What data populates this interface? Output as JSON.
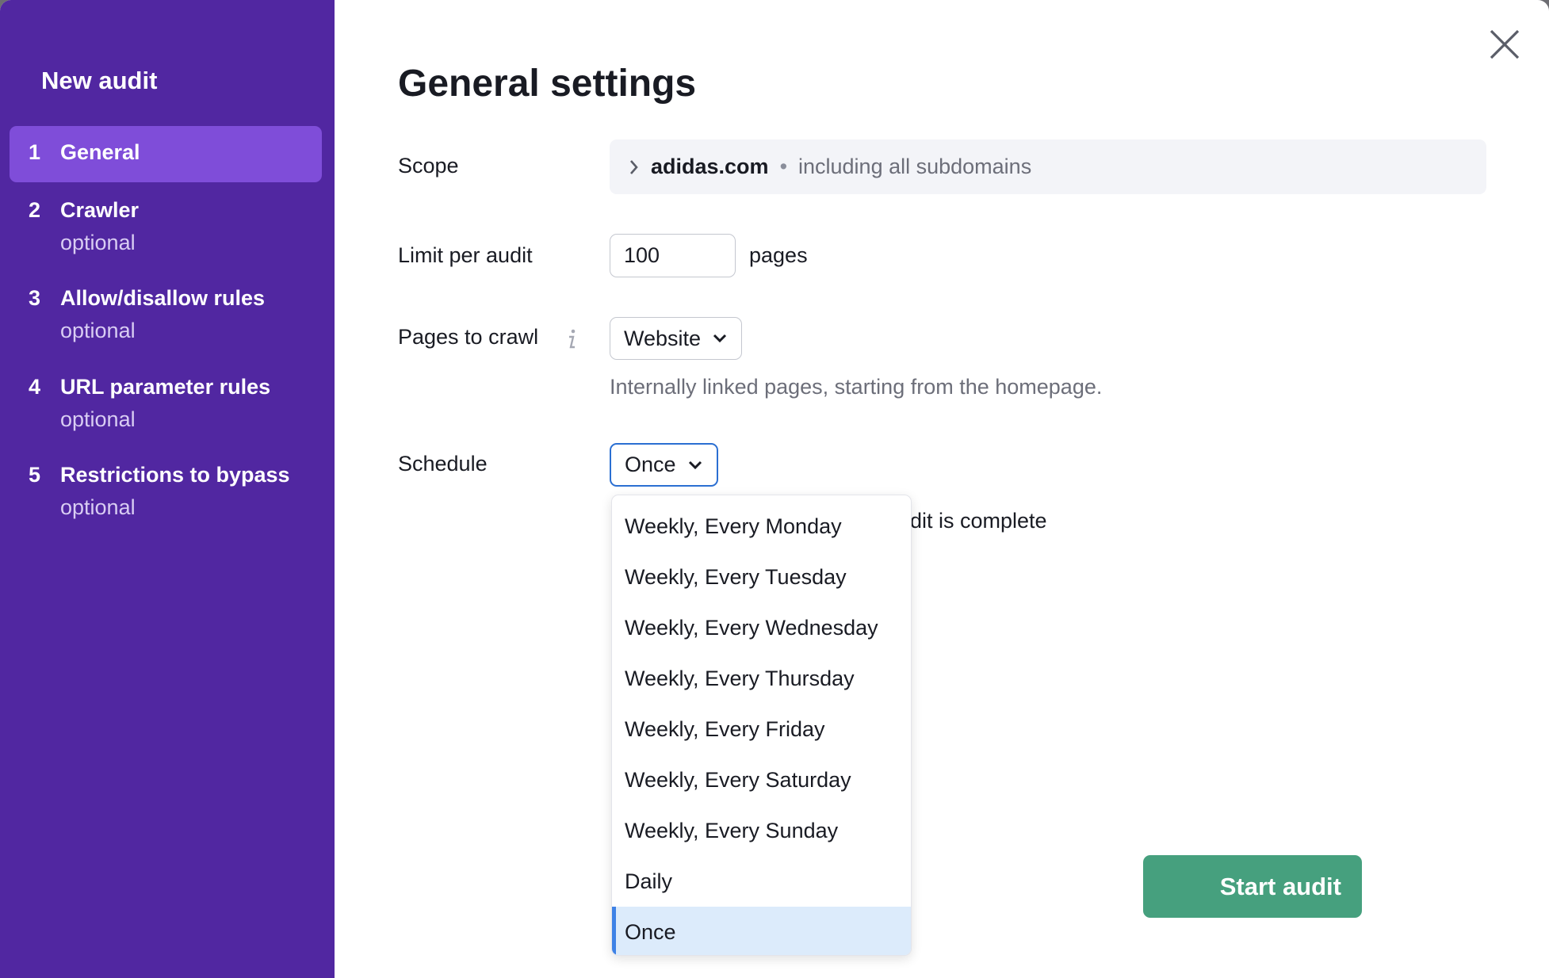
{
  "sidebar": {
    "title": "New audit",
    "steps": [
      {
        "num": "1",
        "label": "General",
        "active": true
      },
      {
        "num": "2",
        "label": "Crawler",
        "sub": "optional"
      },
      {
        "num": "3",
        "label": "Allow/disallow rules",
        "sub": "optional"
      },
      {
        "num": "4",
        "label": "URL parameter rules",
        "sub": "optional"
      },
      {
        "num": "5",
        "label": "Restrictions to bypass",
        "sub": "optional"
      }
    ]
  },
  "main": {
    "title": "General settings",
    "scope": {
      "label": "Scope",
      "domain": "adidas.com",
      "separator": "•",
      "detail": "including all subdomains"
    },
    "limit": {
      "label": "Limit per audit",
      "value": "100",
      "unit": "pages"
    },
    "pages_to_crawl": {
      "label": "Pages to crawl",
      "value": "Website",
      "help": "Internally linked pages, starting from the homepage."
    },
    "schedule": {
      "label": "Schedule",
      "value": "Once",
      "options": [
        "Weekly, Every Monday",
        "Weekly, Every Tuesday",
        "Weekly, Every Wednesday",
        "Weekly, Every Thursday",
        "Weekly, Every Friday",
        "Weekly, Every Saturday",
        "Weekly, Every Sunday",
        "Daily",
        "Once"
      ],
      "selected": "Once"
    },
    "email_fragment": "dit is complete",
    "start_button": "Start audit"
  },
  "colors": {
    "sidebar": "#5127a1",
    "active_step": "#7f4dd9",
    "primary": "#46a07e",
    "focus": "#2b6fd2",
    "highlight": "#dcebfb"
  },
  "icons": {
    "close": "close-icon",
    "chevron": "chevron-down-icon",
    "scope": "chevron-right-icon",
    "info": "info-icon"
  }
}
